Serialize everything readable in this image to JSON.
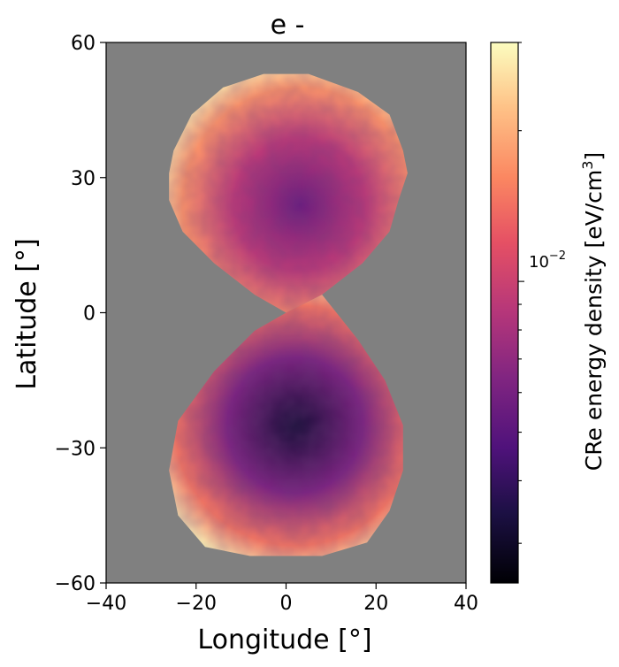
{
  "chart_data": {
    "type": "heatmap",
    "title": "e -",
    "xlabel": "Longitude [°]",
    "ylabel": "Latitude [°]",
    "xlim": [
      -40,
      40
    ],
    "ylim": [
      -60,
      60
    ],
    "xticks": [
      -40,
      -20,
      0,
      20,
      40
    ],
    "xtick_labels": [
      "−40",
      "−20",
      "0",
      "20",
      "40"
    ],
    "yticks": [
      -60,
      -30,
      0,
      30,
      60
    ],
    "ytick_labels": [
      "−60",
      "−30",
      "0",
      "30",
      "60"
    ],
    "background_color": "#808080",
    "colormap": "magma",
    "colorbar": {
      "label": "CRe energy density [eV/cm³]",
      "label_main": "CRe energy density [eV/cm",
      "label_sup": "3",
      "label_end": "]",
      "scale": "log",
      "major_tick_value": 0.01,
      "major_tick_label_base": "10",
      "major_tick_label_exp": "−2",
      "range": [
        0.0025,
        0.03
      ]
    },
    "lobes": [
      {
        "name": "north",
        "outline_lonlat": [
          [
            -5,
            53
          ],
          [
            5,
            53
          ],
          [
            16,
            49
          ],
          [
            23,
            44
          ],
          [
            26,
            36
          ],
          [
            27,
            31
          ],
          [
            25,
            25
          ],
          [
            23,
            18
          ],
          [
            17,
            11
          ],
          [
            8,
            4
          ],
          [
            0,
            0
          ],
          [
            -7,
            4
          ],
          [
            -16,
            11
          ],
          [
            -23,
            18
          ],
          [
            -26,
            25
          ],
          [
            -26,
            31
          ],
          [
            -25,
            36
          ],
          [
            -21,
            44
          ],
          [
            -14,
            50
          ]
        ],
        "center_lonlat": [
          3,
          24
        ],
        "center_value": 0.0055,
        "edge_value": 0.028
      },
      {
        "name": "south",
        "outline_lonlat": [
          [
            0,
            0
          ],
          [
            8,
            4
          ],
          [
            16,
            -6
          ],
          [
            22,
            -15
          ],
          [
            26,
            -25
          ],
          [
            26,
            -35
          ],
          [
            23,
            -44
          ],
          [
            18,
            -51
          ],
          [
            8,
            -54
          ],
          [
            -8,
            -54
          ],
          [
            -18,
            -52
          ],
          [
            -24,
            -45
          ],
          [
            -26,
            -35
          ],
          [
            -24,
            -24
          ],
          [
            -16,
            -13
          ],
          [
            -7,
            -4
          ]
        ],
        "center_lonlat": [
          2,
          -25
        ],
        "center_value": 0.0032,
        "edge_value": 0.028
      }
    ]
  }
}
